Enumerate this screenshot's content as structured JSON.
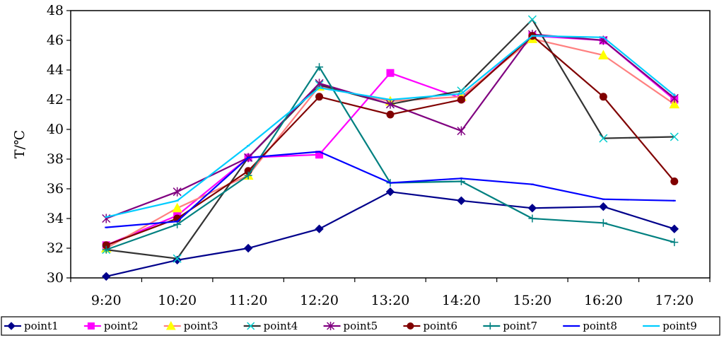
{
  "chart_data": {
    "type": "line",
    "title": "",
    "xlabel": "",
    "ylabel": "T/℃",
    "ylim": [
      30,
      48
    ],
    "yticks": [
      30,
      32,
      34,
      36,
      38,
      40,
      42,
      44,
      46,
      48
    ],
    "grid": false,
    "legend_position": "bottom",
    "categories": [
      "9:20",
      "10:20",
      "11:20",
      "12:20",
      "13:20",
      "14:20",
      "15:20",
      "16:20",
      "17:20"
    ],
    "series": [
      {
        "name": "point1",
        "color": "#00008B",
        "marker": "diamond",
        "values": [
          30.1,
          31.2,
          32.0,
          33.3,
          35.8,
          35.2,
          34.7,
          34.8,
          33.3
        ]
      },
      {
        "name": "point2",
        "color": "#FF00FF",
        "marker": "square",
        "values": [
          32.2,
          34.2,
          38.1,
          38.3,
          43.8,
          42.1,
          46.3,
          46.0,
          42.0
        ]
      },
      {
        "name": "point3",
        "color": "#FF8080",
        "marker": "triangle",
        "values": [
          32.0,
          34.7,
          36.9,
          42.9,
          41.9,
          42.2,
          46.1,
          45.0,
          41.7
        ]
      },
      {
        "name": "point4",
        "color": "#333333",
        "marker": "x",
        "values": [
          31.9,
          31.3,
          38.1,
          43.0,
          41.7,
          42.6,
          47.4,
          39.4,
          39.5
        ]
      },
      {
        "name": "point5",
        "color": "#800080",
        "marker": "star",
        "values": [
          34.0,
          35.8,
          38.1,
          43.1,
          41.7,
          39.9,
          46.4,
          46.0,
          42.1
        ]
      },
      {
        "name": "point6",
        "color": "#800000",
        "marker": "circle",
        "values": [
          32.2,
          34.0,
          37.2,
          42.2,
          41.0,
          42.0,
          46.3,
          42.2,
          36.5
        ]
      },
      {
        "name": "point7",
        "color": "#008080",
        "marker": "plus",
        "values": [
          31.9,
          33.6,
          36.9,
          44.2,
          36.4,
          36.5,
          34.0,
          33.7,
          32.4
        ]
      },
      {
        "name": "point8",
        "color": "#0000FF",
        "marker": "none",
        "values": [
          33.4,
          33.8,
          38.1,
          38.5,
          36.4,
          36.7,
          36.3,
          35.3,
          35.2
        ]
      },
      {
        "name": "point9",
        "color": "#00CCFF",
        "marker": "none",
        "values": [
          34.1,
          35.2,
          38.9,
          42.8,
          42.0,
          42.4,
          46.3,
          46.2,
          42.3
        ]
      }
    ]
  }
}
